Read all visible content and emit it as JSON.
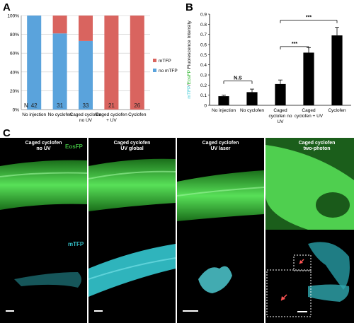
{
  "panel_labels": {
    "a": "A",
    "b": "B",
    "c": "C"
  },
  "chart_data": [
    {
      "type": "bar",
      "stacked": true,
      "categories": [
        "No injection",
        "No cyclofen",
        "Caged cyclofen no UV",
        "Caged cyclofen + UV",
        "Cyclofen"
      ],
      "n_label": "N",
      "n_values": [
        "42",
        "31",
        "33",
        "21",
        "26"
      ],
      "series": [
        {
          "name": "no mTFP",
          "color": "#5aa3dc",
          "values": [
            100,
            81,
            73,
            0,
            0
          ]
        },
        {
          "name": "mTFP",
          "color": "#d9645f",
          "values": [
            0,
            19,
            27,
            100,
            100
          ]
        }
      ],
      "ylim": [
        0,
        100
      ],
      "yticks": [
        "0%",
        "20%",
        "40%",
        "60%",
        "80%",
        "100%"
      ],
      "grid": true,
      "legend": "right"
    },
    {
      "type": "bar",
      "categories": [
        "No injection",
        "No cyclofen",
        "Caged cyclofen no UV",
        "Caged cyclofen + UV",
        "Cyclofen"
      ],
      "values": [
        0.09,
        0.13,
        0.21,
        0.52,
        0.69
      ],
      "errors": [
        0.01,
        0.03,
        0.04,
        0.05,
        0.08
      ],
      "color": "#000000",
      "ylabel_parts": [
        "mTFP",
        "/",
        "EosFP",
        " Fluorescence Intensity"
      ],
      "ylabel_colors": [
        "#3ecbd6",
        "#000000",
        "#2ab52a",
        "#000000"
      ],
      "ylim": [
        0,
        0.9
      ],
      "yticks": [
        "0",
        "0.1",
        "0.2",
        "0.3",
        "0.4",
        "0.5",
        "0.6",
        "0.7",
        "0.8",
        "0.9"
      ],
      "significance": [
        {
          "from": 0,
          "to": 1,
          "label": "N.S"
        },
        {
          "from": 2,
          "to": 3,
          "label": "***"
        },
        {
          "from": 2,
          "to": 4,
          "label": "***"
        }
      ]
    }
  ],
  "panel_c": {
    "columns": [
      {
        "title_lines": [
          "Caged cyclofen",
          "no UV"
        ]
      },
      {
        "title_lines": [
          "Caged cyclofen",
          "UV global"
        ]
      },
      {
        "title_lines": [
          "Caged cyclofen",
          "UV laser"
        ]
      },
      {
        "title_lines": [
          "Caged cyclofen",
          "two-photon"
        ]
      }
    ],
    "row_labels": {
      "eos": "EosFP",
      "mtfp": "mTFP"
    },
    "colors": {
      "eos": "#3fb83f",
      "mtfp": "#35c3cc",
      "arrow": "#ff5555"
    }
  }
}
